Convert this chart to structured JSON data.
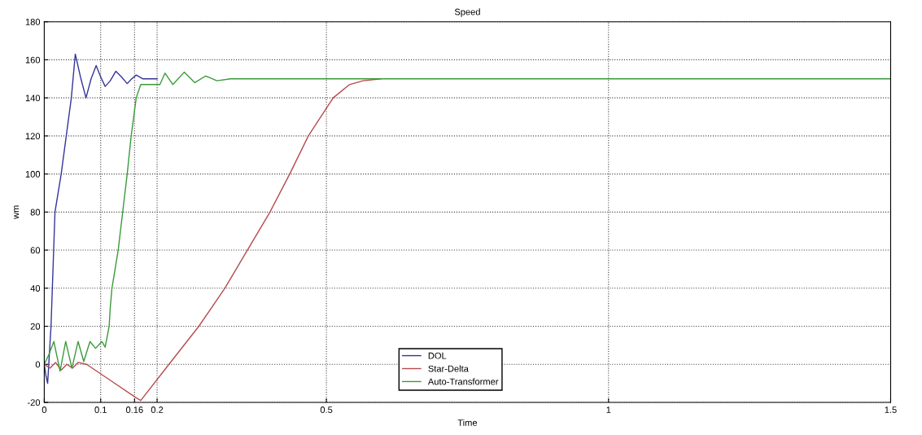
{
  "chart_data": {
    "type": "line",
    "title": "Speed",
    "xlabel": "Time",
    "ylabel": "wm",
    "xlim": [
      0,
      1.5
    ],
    "xticks": [
      0,
      0.1,
      0.16,
      0.2,
      0.5,
      1,
      1.5
    ],
    "ylim": [
      -20,
      180
    ],
    "yticks": [
      -20,
      0,
      20,
      40,
      60,
      80,
      100,
      120,
      140,
      160,
      180
    ],
    "grid": true,
    "legend": "bottom",
    "line_style": "solid",
    "marker": "none",
    "series": [
      {
        "name": "DOL",
        "color": "#34349a",
        "x": [
          0,
          0.003,
          0.006,
          0.008,
          0.012,
          0.019,
          0.03,
          0.039,
          0.048,
          0.055,
          0.065,
          0.074,
          0.083,
          0.092,
          0.1,
          0.108,
          0.117,
          0.127,
          0.137,
          0.147,
          0.155,
          0.163,
          0.175,
          0.2
        ],
        "values": [
          0,
          -6,
          -10,
          0,
          20,
          80,
          100,
          120,
          140,
          163,
          150,
          140,
          150,
          157,
          151,
          146,
          149,
          154,
          151,
          147.5,
          150,
          152,
          150,
          150
        ]
      },
      {
        "name": "Star-Delta",
        "color": "#b84a4c",
        "x": [
          0,
          0.01,
          0.02,
          0.03,
          0.04,
          0.05,
          0.06,
          0.075,
          0.12,
          0.163,
          0.171,
          0.221,
          0.274,
          0.32,
          0.36,
          0.4,
          0.435,
          0.468,
          0.512,
          0.541,
          0.565,
          0.596
        ],
        "values": [
          0,
          -2,
          1,
          -3,
          0,
          -2,
          1,
          0,
          -9,
          -17.6,
          -19,
          0,
          20,
          40,
          60,
          80,
          100,
          120,
          140,
          147,
          149,
          150
        ]
      },
      {
        "name": "Auto-Transformer",
        "color": "#3a9a3a",
        "x": [
          0,
          0.008,
          0.017,
          0.028,
          0.038,
          0.049,
          0.06,
          0.07,
          0.081,
          0.091,
          0.102,
          0.108,
          0.115,
          0.117,
          0.12,
          0.131,
          0.139,
          0.147,
          0.154,
          0.163,
          0.171,
          0.205,
          0.214,
          0.228,
          0.248,
          0.267,
          0.286,
          0.306,
          0.33,
          1.5
        ],
        "values": [
          0,
          5,
          12,
          -3.6,
          12,
          -2,
          12,
          1.5,
          12,
          8.4,
          12,
          9,
          20,
          30,
          40,
          60,
          80,
          100,
          120,
          140,
          147,
          147,
          153,
          147,
          153.5,
          148,
          151.5,
          149,
          150,
          150
        ]
      }
    ]
  }
}
